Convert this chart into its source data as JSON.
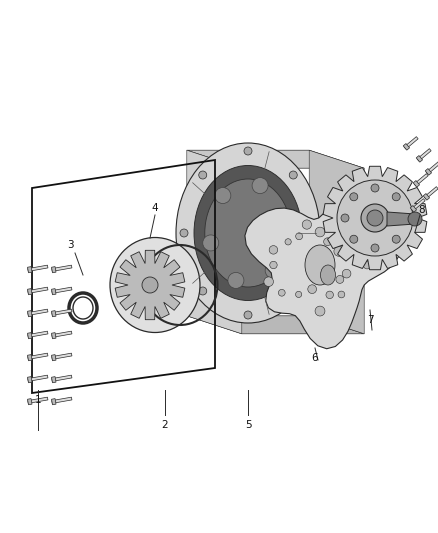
{
  "background_color": "#ffffff",
  "figsize": [
    4.38,
    5.33
  ],
  "dpi": 100,
  "line_color": "#2a2a2a",
  "fill_light": "#e8e8e8",
  "fill_mid": "#cccccc",
  "fill_dark": "#aaaaaa",
  "fill_darker": "#888888"
}
